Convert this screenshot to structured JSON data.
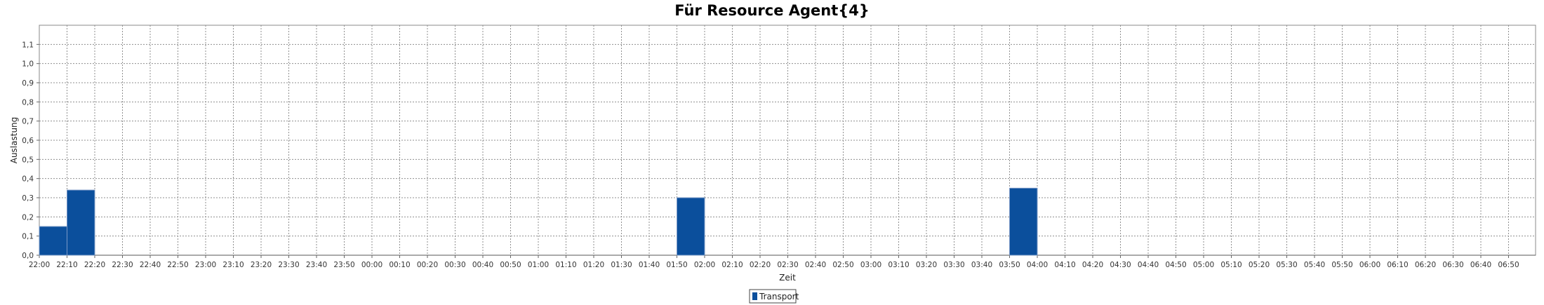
{
  "chart_data": {
    "type": "bar",
    "title": "Für Resource Agent{4}",
    "xlabel": "Zeit",
    "ylabel": "Auslastung",
    "ylim": [
      0,
      1.2
    ],
    "yticks": [
      "0,0",
      "0,1",
      "0,2",
      "0,3",
      "0,4",
      "0,5",
      "0,6",
      "0,7",
      "0,8",
      "0,9",
      "1,0",
      "1,1"
    ],
    "categories": [
      "22:00",
      "22:10",
      "22:20",
      "22:30",
      "22:40",
      "22:50",
      "23:00",
      "23:10",
      "23:20",
      "23:30",
      "23:40",
      "23:50",
      "00:00",
      "00:10",
      "00:20",
      "00:30",
      "00:40",
      "00:50",
      "01:00",
      "01:10",
      "01:20",
      "01:30",
      "01:40",
      "01:50",
      "02:00",
      "02:10",
      "02:20",
      "02:30",
      "02:40",
      "02:50",
      "03:00",
      "03:10",
      "03:20",
      "03:30",
      "03:40",
      "03:50",
      "04:00",
      "04:10",
      "04:20",
      "04:30",
      "04:40",
      "04:50",
      "05:00",
      "05:10",
      "05:20",
      "05:30",
      "05:40",
      "05:50",
      "06:00",
      "06:10",
      "06:20",
      "06:30",
      "06:40",
      "06:50"
    ],
    "series": [
      {
        "name": "Transport",
        "color": "#0b4f9c",
        "values": [
          0.15,
          0.34,
          0,
          0,
          0,
          0,
          0,
          0,
          0,
          0,
          0,
          0,
          0,
          0,
          0,
          0,
          0,
          0,
          0,
          0,
          0,
          0,
          0,
          0.3,
          0,
          0,
          0,
          0,
          0,
          0,
          0,
          0,
          0,
          0,
          0,
          0.35,
          0,
          0,
          0,
          0,
          0,
          0,
          0,
          0,
          0,
          0,
          0,
          0,
          0,
          0,
          0,
          0,
          0,
          0
        ]
      }
    ],
    "grid": true,
    "legend": "bottom-center"
  }
}
